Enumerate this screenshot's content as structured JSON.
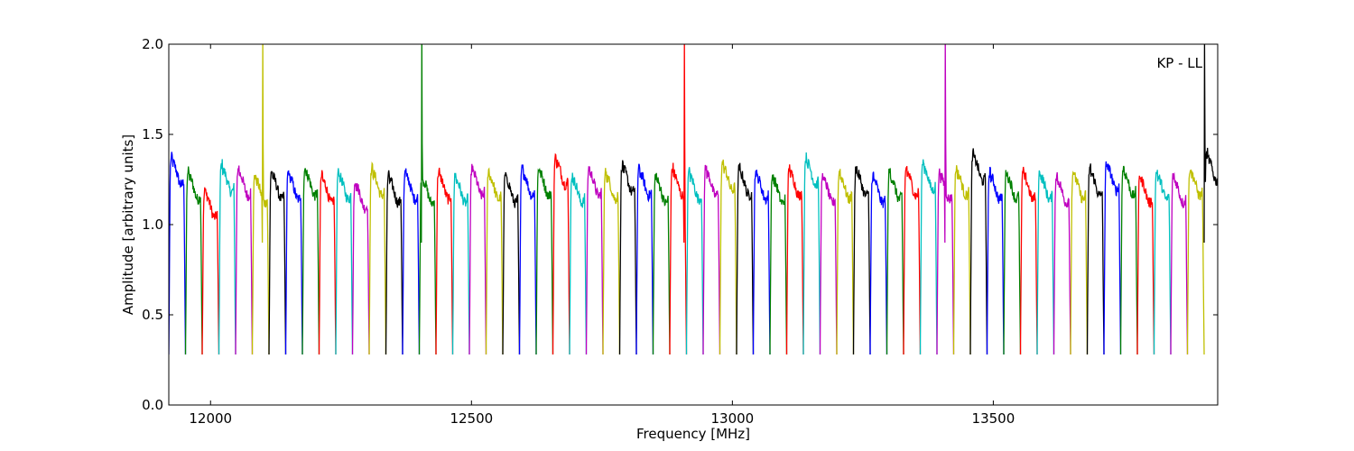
{
  "chart_data": {
    "type": "line",
    "title": "",
    "xlabel": "Frequency [MHz]",
    "ylabel": "Amplitude [arbitrary units]",
    "annotation": "KP - LL",
    "xlim": [
      11920,
      13930
    ],
    "ylim": [
      0.0,
      2.0
    ],
    "xticks": [
      12000,
      12500,
      13000,
      13500
    ],
    "xtick_labels": [
      "12000",
      "12500",
      "13000",
      "13500"
    ],
    "yticks": [
      0.0,
      0.5,
      1.0,
      1.5,
      2.0
    ],
    "ytick_labels": [
      "0.0",
      "0.5",
      "1.0",
      "1.5",
      "2.0"
    ],
    "grid": false,
    "color_cycle": [
      "#0000ff",
      "#008000",
      "#ff0000",
      "#00bfbf",
      "#bf00bf",
      "#bfbf00",
      "#000000"
    ],
    "channel_width_mhz": 32,
    "first_channel_start_mhz": 11920,
    "channel_count": 63,
    "channel_baseline": 0.28,
    "channel_levels": [
      1.28,
      1.2,
      1.1,
      1.24,
      1.22,
      1.18,
      1.2,
      1.2,
      1.22,
      1.18,
      1.2,
      1.15,
      1.22,
      1.18,
      1.2,
      1.18,
      1.2,
      1.18,
      1.22,
      1.2,
      1.18,
      1.22,
      1.22,
      1.28,
      1.18,
      1.22,
      1.2,
      1.24,
      1.22,
      1.18,
      1.22,
      1.2,
      1.22,
      1.25,
      1.22,
      1.2,
      1.18,
      1.22,
      1.28,
      1.18,
      1.2,
      1.22,
      1.18,
      1.2,
      1.22,
      1.25,
      1.2,
      1.22,
      1.3,
      1.2,
      1.2,
      1.2,
      1.2,
      1.18,
      1.2,
      1.22,
      1.25,
      1.22,
      1.18,
      1.2,
      1.18,
      1.22,
      1.3
    ],
    "spikes": [
      {
        "frequency": 12100,
        "peak": 2.0
      },
      {
        "frequency": 12405,
        "peak": 2.0
      },
      {
        "frequency": 12908,
        "peak": 2.0
      },
      {
        "frequency": 13408,
        "peak": 2.0
      },
      {
        "frequency": 13905,
        "peak": 2.0
      }
    ]
  }
}
